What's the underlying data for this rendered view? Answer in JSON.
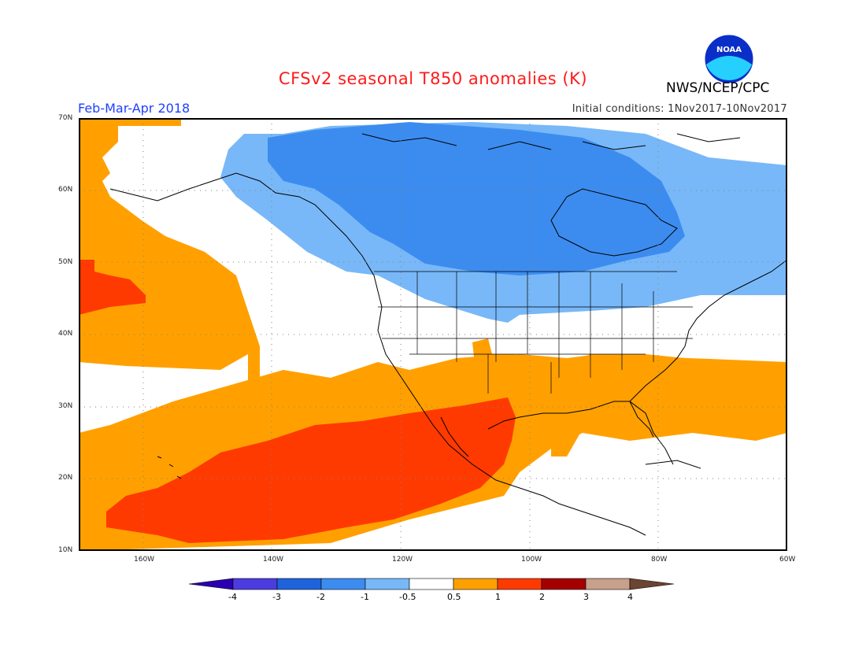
{
  "header": {
    "title": "CFSv2 seasonal T850 anomalies (K)",
    "organization": "NWS/NCEP/CPC",
    "logo_text": "NOAA",
    "period": "Feb-Mar-Apr 2018",
    "initial_conditions": "Initial conditions: 1Nov2017-10Nov2017"
  },
  "map": {
    "lat_labels": [
      "70N",
      "60N",
      "50N",
      "40N",
      "30N",
      "20N",
      "10N"
    ],
    "lon_labels": [
      "160W",
      "140W",
      "120W",
      "100W",
      "80W",
      "60W"
    ],
    "extent": {
      "lon": [
        -170,
        -60
      ],
      "lat": [
        10,
        70
      ]
    }
  },
  "colorbar": {
    "labels": [
      "-4",
      "-3",
      "-2",
      "-1",
      "-0.5",
      "0.5",
      "1",
      "2",
      "3",
      "4"
    ],
    "colors": [
      "#2a00b0",
      "#4c3ce0",
      "#1f63dc",
      "#3c8cf0",
      "#78b8f8",
      "#ffffff",
      "#ffa000",
      "#ff3a00",
      "#a50000",
      "#c8a08c",
      "#6b4432"
    ]
  }
}
